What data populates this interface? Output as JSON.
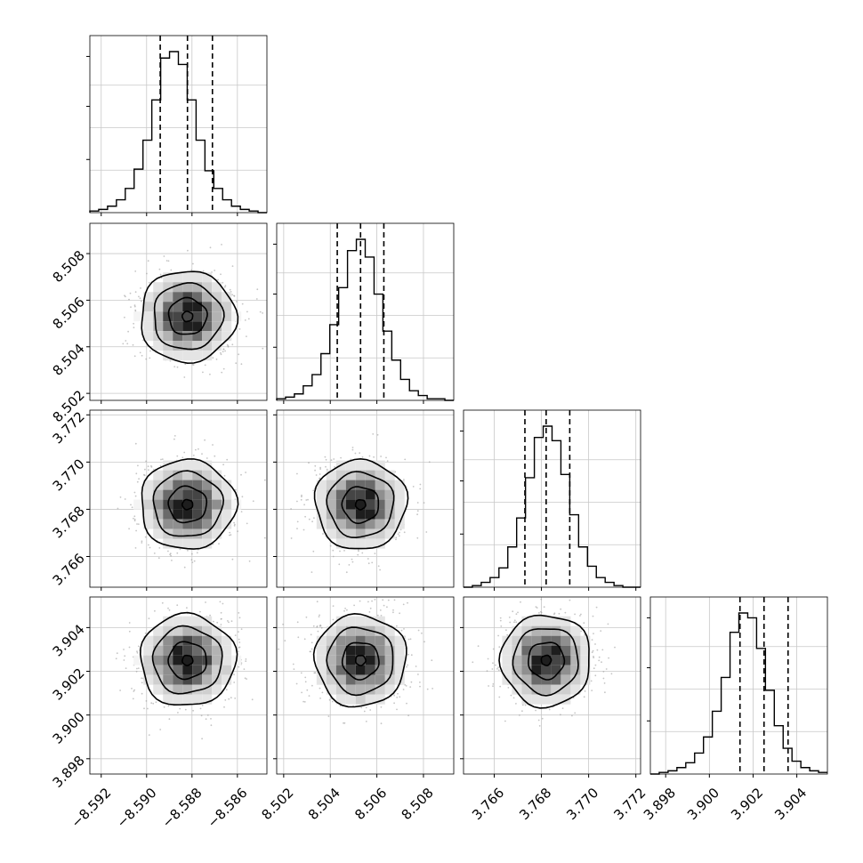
{
  "chart_data": {
    "type": "corner",
    "title": "",
    "parameters": [
      {
        "name": "",
        "range": [
          -8.5925,
          -8.5847
        ],
        "ticks": [
          -8.592,
          -8.59,
          -8.588,
          -8.586
        ],
        "tick_labels": [
          "−8.592",
          "−8.590",
          "−8.588",
          "−8.586"
        ],
        "quantiles": [
          -8.5894,
          -8.5882,
          -8.5871
        ],
        "mean": -8.5882,
        "sd": 0.00105,
        "histogram": [
          1,
          2,
          4,
          8,
          15,
          27,
          45,
          70,
          96,
          100,
          92,
          70,
          45,
          26,
          15,
          8,
          4,
          2,
          1,
          0
        ]
      },
      {
        "name": "",
        "range": [
          8.5017,
          8.5093
        ],
        "ticks": [
          8.502,
          8.504,
          8.506,
          8.508
        ],
        "tick_labels": [
          "8.502",
          "8.504",
          "8.506",
          "8.508"
        ],
        "quantiles": [
          8.5043,
          8.5053,
          8.5063
        ],
        "mean": 8.5053,
        "sd": 0.00098,
        "histogram": [
          1,
          2,
          4,
          9,
          16,
          29,
          47,
          70,
          93,
          100,
          89,
          66,
          43,
          25,
          13,
          6,
          3,
          1,
          1,
          0
        ]
      },
      {
        "name": "",
        "range": [
          3.7647,
          3.7722
        ],
        "ticks": [
          3.766,
          3.768,
          3.77,
          3.772
        ],
        "tick_labels": [
          "3.766",
          "3.768",
          "3.770",
          "3.772"
        ],
        "quantiles": [
          3.7673,
          3.7682,
          3.7692
        ],
        "mean": 3.7682,
        "sd": 0.00095,
        "histogram": [
          0,
          1,
          3,
          6,
          12,
          25,
          43,
          68,
          93,
          100,
          91,
          70,
          45,
          25,
          13,
          6,
          3,
          1,
          0,
          0
        ]
      },
      {
        "name": "",
        "range": [
          3.8973,
          3.9054
        ],
        "ticks": [
          3.898,
          3.9,
          3.902,
          3.904
        ],
        "tick_labels": [
          "3.898",
          "3.900",
          "3.902",
          "3.904"
        ],
        "quantiles": [
          3.9014,
          3.9025,
          3.9036
        ],
        "mean": 3.9025,
        "sd": 0.00105,
        "histogram": [
          0,
          1,
          2,
          4,
          7,
          13,
          23,
          39,
          60,
          88,
          100,
          97,
          78,
          52,
          30,
          16,
          8,
          4,
          2,
          1
        ]
      }
    ],
    "grid": true,
    "contour_levels": 3,
    "colors": {
      "line": "#000000",
      "points": "#9e9e9e",
      "grid": "#c8c8c8",
      "frame": "#000000"
    }
  }
}
